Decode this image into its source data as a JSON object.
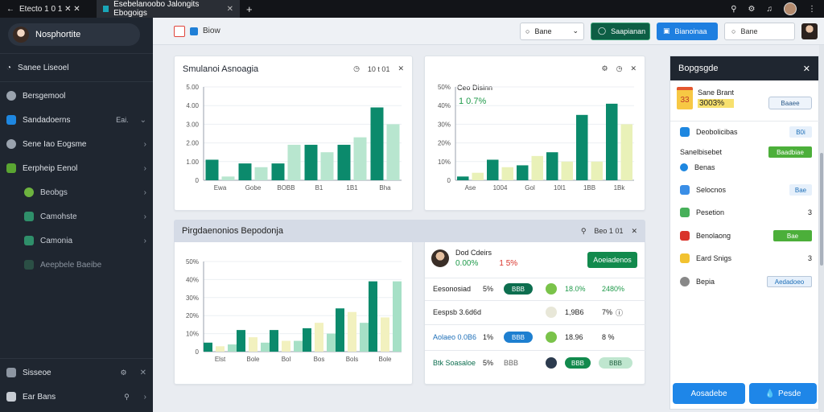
{
  "browser": {
    "tab1_title": "Etecto 1 0 1 ✕ ✕",
    "tab2_title": "Esebelanoobo Jalongits Ebogoigs",
    "new_tab": "+"
  },
  "sidebar": {
    "header": "Nosphortite",
    "section": "Sanee Liseoel",
    "items": [
      {
        "label": "Bersgemool",
        "aux": "",
        "icon_color": "#9aa3ae"
      },
      {
        "label": "Sandadoerns",
        "aux": "Eai.",
        "icon_color": "#1e87e0"
      },
      {
        "label": "Sene Iao Eogsme",
        "aux": "",
        "icon_color": "#9aa3ae"
      },
      {
        "label": "Eerpheip Eenol",
        "aux": "",
        "icon_color": "#5aa532"
      }
    ],
    "subitems": [
      {
        "label": "Beobgs",
        "icon_color": "#6db33f"
      },
      {
        "label": "Camohste",
        "icon_color": "#2f8f6a"
      },
      {
        "label": "Camonia",
        "icon_color": "#2f8f6a"
      },
      {
        "label": "Aeepbele Baeibe",
        "icon_color": "#2f8f6a"
      }
    ],
    "bottom": [
      {
        "label": "Sisseoe"
      },
      {
        "label": "Ear Bans"
      }
    ]
  },
  "toolbar": {
    "crumb": "Biow",
    "select_value": "Bane",
    "btn_green": "Saapianan",
    "btn_blue": "Bianoinaa",
    "btn_white": "Bane"
  },
  "card1": {
    "title": "Smulanoi Asnoagia",
    "action": "10 t 01",
    "chart_data": {
      "type": "bar",
      "categories": [
        "Ewa",
        "Gobe",
        "BOBB",
        "B1",
        "1B1",
        "Bha"
      ],
      "ylim": [
        0,
        5
      ],
      "yticks": [
        "0",
        "1.00",
        "2.00",
        "3.00",
        "4.00",
        "5.00"
      ],
      "series": [
        {
          "color": "#0b8a6c",
          "values": [
            1.1,
            0.9,
            0.9,
            1.9,
            1.9,
            3.9
          ]
        },
        {
          "color": "#b8e6cf",
          "values": [
            0.2,
            0.7,
            1.9,
            1.5,
            2.3,
            3.0
          ]
        }
      ]
    }
  },
  "card2": {
    "title": "Ceo Disinn",
    "stat": "1 0.7%",
    "chart_data": {
      "type": "bar",
      "categories": [
        "Ase",
        "1004",
        "Gol",
        "10l1",
        "1BB",
        "1Bk"
      ],
      "ylim": [
        0,
        5
      ],
      "yticks": [
        "0",
        "10%",
        "20%",
        "30%",
        "40%",
        "50%"
      ],
      "series": [
        {
          "color": "#0b8a6c",
          "values": [
            0.2,
            1.1,
            0.8,
            1.5,
            3.5,
            4.1
          ]
        },
        {
          "color": "#e9f1b8",
          "values": [
            0.4,
            0.7,
            1.3,
            1.0,
            1.0,
            3.0
          ]
        }
      ]
    }
  },
  "band": {
    "title": "Pirgdaenonios Bepodonja",
    "action": "Beo 1 01"
  },
  "card3": {
    "chart_data": {
      "type": "bar",
      "categories": [
        "Elst",
        "Bole",
        "Bol",
        "Bos",
        "Bols",
        "Bole"
      ],
      "ylim": [
        0,
        5
      ],
      "yticks": [
        "0",
        "10%",
        "20%",
        "30%",
        "40%",
        "50%"
      ],
      "series": [
        {
          "color": "#0b8a6c",
          "values": [
            0.5,
            1.2,
            1.2,
            1.3,
            2.4,
            3.9
          ]
        },
        {
          "color": "#f2f1bf",
          "values": [
            0.3,
            0.8,
            0.6,
            1.6,
            2.2,
            1.9
          ]
        },
        {
          "color": "#a6e0c6",
          "values": [
            0.4,
            0.5,
            0.6,
            1.0,
            1.6,
            3.9
          ]
        }
      ]
    }
  },
  "table": {
    "person": "Dod Cdeirs",
    "stat_green": "0.00%",
    "stat_red": "1 5%",
    "action_btn": "Aoeiadenos",
    "rows": [
      {
        "name": "Eesonosiad",
        "pct": "5%",
        "pill": "BBB",
        "pill_color": "#0d6e4f",
        "dot_color": "#7ac34a",
        "v1": "18.0%",
        "v2": "2480%"
      },
      {
        "name": "Eespsb 3.6d6d",
        "pct": "",
        "pill": "",
        "pill_color": "",
        "dot_color": "#e8e7d8",
        "v1": "1,9B6",
        "v2": "7%"
      },
      {
        "name": "Aolaeo 0.0B6",
        "pct": "1%",
        "pill": "BBB",
        "pill_color": "#1e7fd0",
        "dot_color": "#7ac34a",
        "v1": "18.96",
        "v2": "8 %"
      },
      {
        "name": "Btk Soasaloe",
        "pct": "5%",
        "pill": "BBB",
        "pill_color": "",
        "dot_color": "#2c3b4e",
        "v1": "BBB",
        "v2": "BBB"
      }
    ]
  },
  "rpanel": {
    "title": "Bopgsgde",
    "event_title": "Sane Brant",
    "event_badge": "33",
    "event_value": "3003%",
    "event_btn": "Baaee",
    "rows": [
      {
        "label": "Deobolicibas",
        "chip": "B0i",
        "chip_bg": "#e6f0fb",
        "chip_fg": "#1e6fb8",
        "icon": "#1e87e0"
      },
      {
        "label": "Sanelbisebet",
        "chip": "Baadbiae",
        "chip_bg": "#4caf3a",
        "chip_fg": "#fff",
        "icon": ""
      },
      {
        "label": "Benas",
        "chip": "",
        "chip_bg": "",
        "chip_fg": "",
        "icon": "#1e87e0"
      },
      {
        "label": "Selocnos",
        "chip": "Bae",
        "chip_bg": "#e6f0fb",
        "chip_fg": "#1e6fb8",
        "icon": "#3a8ee6"
      },
      {
        "label": "Pesetion",
        "chip": "3",
        "chip_bg": "",
        "chip_fg": "#222",
        "icon": "#47b05a"
      },
      {
        "label": "Benolaong",
        "chip": "Bae",
        "chip_bg": "#4caf3a",
        "chip_fg": "#fff",
        "icon": "#d9342b"
      },
      {
        "label": "Eard Snigs",
        "chip": "3",
        "chip_bg": "",
        "chip_fg": "#222",
        "icon": "#f2c230"
      },
      {
        "label": "Bepia",
        "chip": "Aedadoeo",
        "chip_bg": "#e6f0fb",
        "chip_fg": "#1e6fb8",
        "icon": "#888"
      }
    ],
    "btn_left": "Aosadebe",
    "btn_right": "Pesde"
  }
}
